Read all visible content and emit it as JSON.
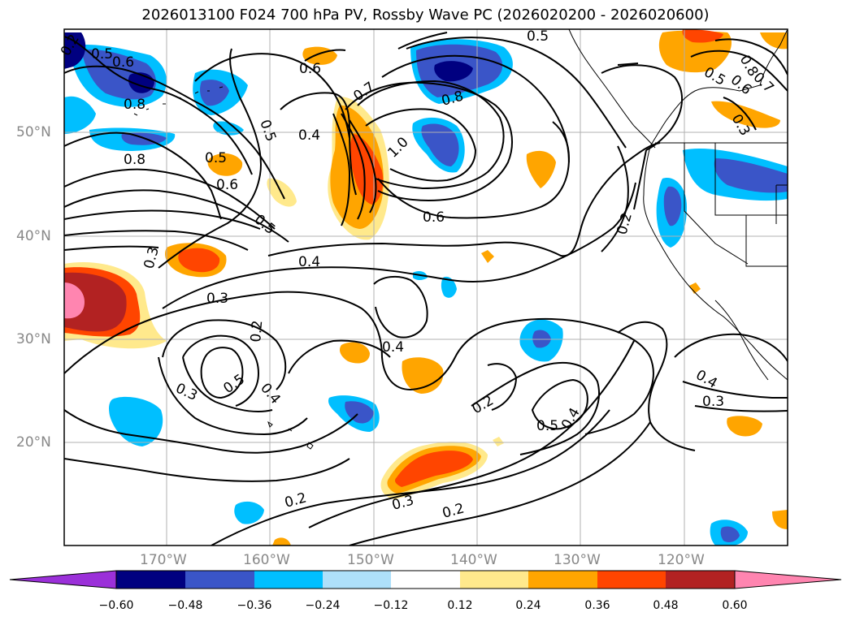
{
  "title": "2026013100 F024 700 hPa PV, Rossby Wave PC (2026020200 - 2026020600)",
  "colors": {
    "fill_neg": [
      "#9b30d9",
      "#000080",
      "#3a55c8",
      "#00bfff",
      "#aee0fa"
    ],
    "fill_pos": [
      "#ffe98c",
      "#ffa500",
      "#ff4500",
      "#b22222",
      "#ff85b0"
    ],
    "contour": "#000000",
    "grid": "#b0b0b0",
    "coast": "#000000"
  },
  "lat_labels": [
    "50°N",
    "40°N",
    "30°N",
    "20°N"
  ],
  "lon_labels": [
    "170°W",
    "160°W",
    "150°W",
    "140°W",
    "130°W",
    "120°W"
  ],
  "colorbar": {
    "ticks": [
      "−0.60",
      "−0.48",
      "−0.36",
      "−0.24",
      "−0.12",
      "0.12",
      "0.24",
      "0.36",
      "0.48",
      "0.60"
    ]
  },
  "contour_labels": [
    {
      "text": "0.2"
    },
    {
      "text": "0.5"
    },
    {
      "text": "0.6"
    },
    {
      "text": "0.8"
    },
    {
      "text": "0.6"
    },
    {
      "text": "0.5"
    },
    {
      "text": "0.8"
    },
    {
      "text": "0.5"
    },
    {
      "text": "0.7"
    },
    {
      "text": "0.8"
    },
    {
      "text": "0.4"
    },
    {
      "text": "0.8"
    },
    {
      "text": "0.6"
    },
    {
      "text": "0.5"
    },
    {
      "text": "1.0"
    },
    {
      "text": "0.6"
    },
    {
      "text": "0.3"
    },
    {
      "text": "0.4"
    },
    {
      "text": "0.3"
    },
    {
      "text": "0.2"
    },
    {
      "text": "0.4"
    },
    {
      "text": "0.3"
    },
    {
      "text": "0.5"
    },
    {
      "text": "0.4"
    },
    {
      "text": "0.2"
    },
    {
      "text": "0.5"
    },
    {
      "text": "0.4"
    },
    {
      "text": "0.2"
    },
    {
      "text": "0.3"
    },
    {
      "text": "0.2"
    },
    {
      "text": "0.2"
    },
    {
      "text": "0.4"
    },
    {
      "text": "0.3"
    },
    {
      "text": "0.5"
    },
    {
      "text": "0.6"
    },
    {
      "text": "0.8"
    },
    {
      "text": "0.7"
    },
    {
      "text": "0.3"
    },
    {
      "text": "0.5"
    }
  ]
}
